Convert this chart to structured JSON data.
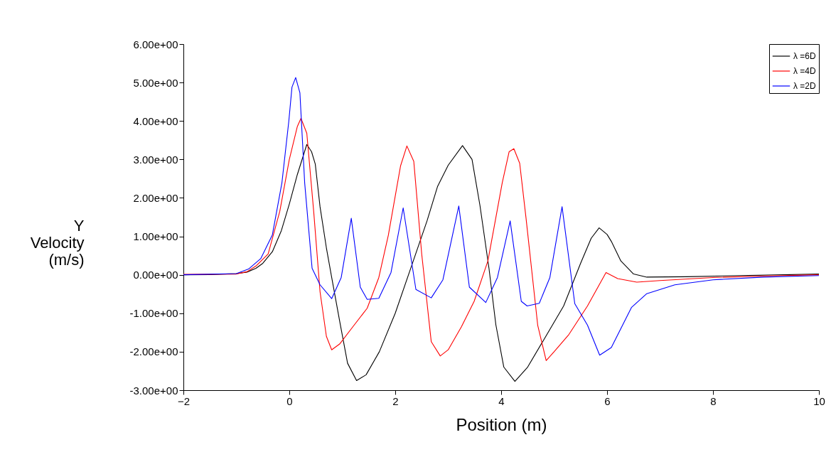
{
  "chart_data": {
    "type": "line",
    "xlabel": "Position (m)",
    "ylabel": "Y Velocity (m/s)",
    "xlim": [
      -2,
      10
    ],
    "xticks": [
      -2,
      0,
      2,
      4,
      6,
      8,
      10
    ],
    "ylim": [
      -3,
      6
    ],
    "yticks": [
      {
        "value": -3,
        "label": "-3.00e+00"
      },
      {
        "value": -2,
        "label": "-2.00e+00"
      },
      {
        "value": -1,
        "label": "-1.00e+00"
      },
      {
        "value": 0,
        "label": "0.00e+00"
      },
      {
        "value": 1,
        "label": "1.00e+00"
      },
      {
        "value": 2,
        "label": "2.00e+00"
      },
      {
        "value": 3,
        "label": "3.00e+00"
      },
      {
        "value": 4,
        "label": "4.00e+00"
      },
      {
        "value": 5,
        "label": "5.00e+00"
      },
      {
        "value": 6,
        "label": "6.00e+00"
      }
    ],
    "grid": false,
    "legend": "top right",
    "marker": "none",
    "line_style": "solid",
    "series": [
      {
        "name": "λ =6D",
        "color": "#000000",
        "x": [
          -2,
          -1.5,
          -1,
          -0.8,
          -0.63,
          -0.5,
          -0.32,
          -0.15,
          0,
          0.15,
          0.33,
          0.42,
          0.49,
          0.58,
          0.7,
          0.8,
          0.95,
          1.1,
          1.27,
          1.45,
          1.7,
          2,
          2.3,
          2.6,
          2.8,
          3,
          3.27,
          3.45,
          3.6,
          3.77,
          3.9,
          4.05,
          4.26,
          4.5,
          4.8,
          5.18,
          5.5,
          5.7,
          5.85,
          6,
          6.08,
          6.26,
          6.5,
          6.75,
          7.5,
          8.5,
          10
        ],
        "values": [
          0,
          0.005,
          0.03,
          0.07,
          0.17,
          0.3,
          0.6,
          1.15,
          1.84,
          2.6,
          3.39,
          3.2,
          2.88,
          1.77,
          0.7,
          -0.07,
          -1.2,
          -2.3,
          -2.75,
          -2.6,
          -2,
          -1,
          0.2,
          1.4,
          2.3,
          2.85,
          3.36,
          3,
          1.8,
          0.17,
          -1.3,
          -2.4,
          -2.77,
          -2.4,
          -1.7,
          -0.81,
          0.3,
          0.95,
          1.22,
          1.05,
          0.87,
          0.36,
          0.02,
          -0.06,
          -0.05,
          -0.02,
          0.02
        ]
      },
      {
        "name": "λ =4D",
        "color": "#ff0000",
        "x": [
          -2,
          -1,
          -0.8,
          -0.62,
          -0.4,
          -0.18,
          0,
          0.15,
          0.22,
          0.33,
          0.46,
          0.58,
          0.7,
          0.8,
          0.95,
          1.2,
          1.47,
          1.69,
          1.87,
          2.1,
          2.22,
          2.35,
          2.5,
          2.68,
          2.85,
          3,
          3.25,
          3.49,
          3.75,
          4.02,
          4.15,
          4.24,
          4.35,
          4.47,
          4.69,
          4.85,
          5,
          5.28,
          5.63,
          5.98,
          6.2,
          6.56,
          7,
          8,
          9,
          10
        ],
        "values": [
          0.01,
          0.02,
          0.08,
          0.24,
          0.54,
          1.65,
          3,
          3.85,
          4.07,
          3.68,
          1.65,
          -0.44,
          -1.6,
          -1.95,
          -1.8,
          -1.35,
          -0.87,
          -0.07,
          1.03,
          2.83,
          3.35,
          2.95,
          0.54,
          -1.74,
          -2.11,
          -1.95,
          -1.35,
          -0.69,
          0.36,
          2.39,
          3.2,
          3.28,
          2.9,
          1.47,
          -1.31,
          -2.23,
          -2,
          -1.55,
          -0.81,
          0.06,
          -0.1,
          -0.19,
          -0.15,
          -0.07,
          -0.03,
          0
        ]
      },
      {
        "name": "λ =2D",
        "color": "#0000ff",
        "x": [
          -2,
          -1,
          -0.77,
          -0.54,
          -0.32,
          -0.14,
          -0.01,
          0.05,
          0.12,
          0.2,
          0.29,
          0.43,
          0.58,
          0.8,
          0.98,
          1.17,
          1.34,
          1.47,
          1.69,
          1.92,
          2.15,
          2.39,
          2.68,
          2.9,
          3.2,
          3.4,
          3.71,
          3.93,
          4.17,
          4.38,
          4.49,
          4.72,
          4.92,
          5.15,
          5.39,
          5.63,
          5.86,
          6.08,
          6.46,
          6.75,
          7.28,
          8,
          8.96,
          10
        ],
        "values": [
          0,
          0.03,
          0.15,
          0.42,
          1.04,
          2.39,
          3.99,
          4.88,
          5.13,
          4.73,
          2.39,
          0.17,
          -0.26,
          -0.62,
          -0.07,
          1.47,
          -0.32,
          -0.64,
          -0.61,
          0.06,
          1.74,
          -0.38,
          -0.6,
          -0.13,
          1.79,
          -0.32,
          -0.72,
          -0.07,
          1.4,
          -0.69,
          -0.81,
          -0.74,
          -0.07,
          1.77,
          -0.75,
          -1.31,
          -2.09,
          -1.89,
          -0.85,
          -0.49,
          -0.26,
          -0.13,
          -0.06,
          -0.02
        ]
      }
    ]
  }
}
